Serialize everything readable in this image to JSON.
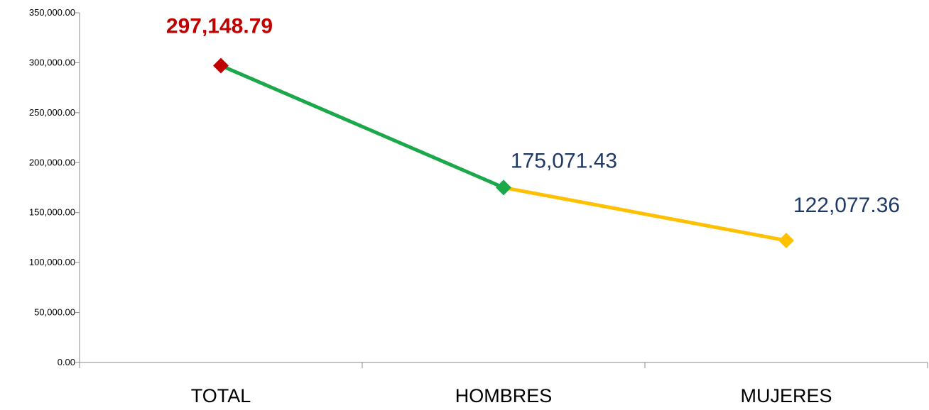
{
  "chart_data": {
    "type": "line",
    "title": "",
    "xlabel": "",
    "ylabel": "",
    "categories": [
      "TOTAL",
      "HOMBRES",
      "MUJERES"
    ],
    "values": [
      297148.79,
      175071.43,
      122077.36
    ],
    "data_labels": [
      "297,148.79",
      "175,071.43",
      "122,077.36"
    ],
    "ylim": [
      0,
      350000
    ],
    "y_ticks": [
      "0.00",
      "50,000.00",
      "100,000.00",
      "150,000.00",
      "200,000.00",
      "250,000.00",
      "300,000.00",
      "350,000.00"
    ],
    "y_tick_values": [
      0,
      50000,
      100000,
      150000,
      200000,
      250000,
      300000,
      350000
    ],
    "grid": false,
    "legend": "none",
    "colors": {
      "segment_1": "#1aa84a",
      "segment_2": "#ffc000",
      "marker_total": "#c00000",
      "marker_hombres": "#1aa84a",
      "marker_mujeres": "#ffc000",
      "label_total": "#c00000",
      "label_other": "#1f3864",
      "axis": "#888888"
    }
  }
}
